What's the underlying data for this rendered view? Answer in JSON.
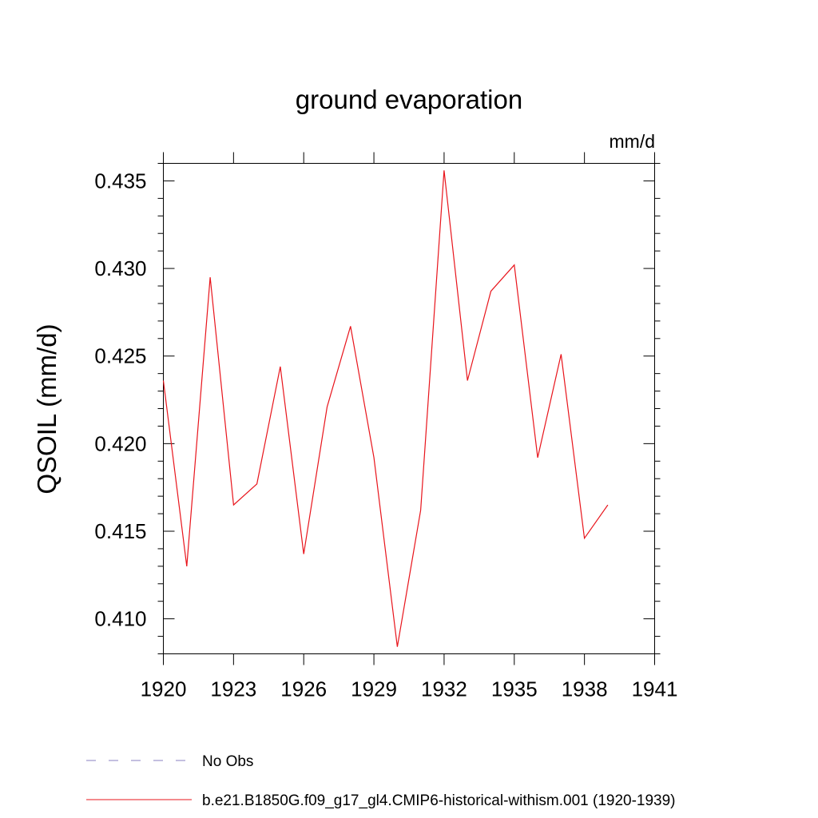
{
  "chart_data": {
    "type": "line",
    "title": "ground evaporation",
    "units": "mm/d",
    "ylabel": "QSOIL  (mm/d)",
    "xlabel": "",
    "xlim": [
      1920,
      1941
    ],
    "ylim": [
      0.408,
      0.436
    ],
    "x_ticks": [
      "1920",
      "1923",
      "1926",
      "1929",
      "1932",
      "1935",
      "1938",
      "1941"
    ],
    "y_ticks": [
      "0.410",
      "0.415",
      "0.420",
      "0.425",
      "0.430",
      "0.435"
    ],
    "grid": false,
    "legend_position": "bottom-left",
    "series": [
      {
        "name": "No Obs",
        "style": "dashed",
        "color": "#8a7fc0",
        "x": [],
        "values": []
      },
      {
        "name": "b.e21.B1850G.f09_g17_gl4.CMIP6-historical-withism.001 (1920-1939)",
        "style": "solid",
        "color": "#e8141b",
        "x": [
          1920,
          1921,
          1922,
          1923,
          1924,
          1925,
          1926,
          1927,
          1928,
          1929,
          1930,
          1931,
          1932,
          1933,
          1934,
          1935,
          1936,
          1937,
          1938,
          1939
        ],
        "values": [
          0.4236,
          0.413,
          0.4295,
          0.4165,
          0.4177,
          0.4244,
          0.4137,
          0.4221,
          0.4267,
          0.4192,
          0.4084,
          0.4162,
          0.4356,
          0.4236,
          0.4287,
          0.4302,
          0.4192,
          0.4251,
          0.4146,
          0.4165
        ]
      }
    ]
  }
}
